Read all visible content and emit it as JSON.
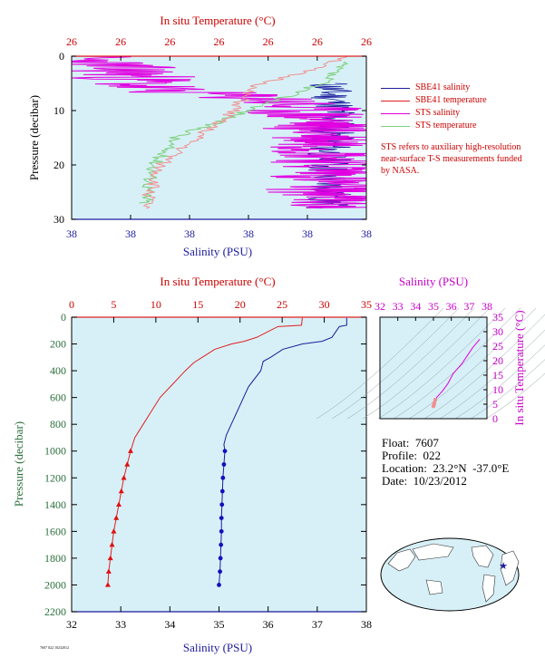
{
  "colors": {
    "plot_bg": "#d7f0f7",
    "salinity": "#1c1c9c",
    "temperature": "#e02020",
    "sts_salinity": "#e000e0",
    "sts_temperature": "#80d080",
    "sts_temperature_line": "#f09090"
  },
  "top_chart": {
    "top_axis_title": "In situ Temperature (°C)",
    "top_ticks": [
      "26",
      "26",
      "26",
      "26",
      "26",
      "26",
      "26"
    ],
    "bottom_axis_title": "Salinity (PSU)",
    "bottom_ticks": [
      "38",
      "38",
      "38",
      "38",
      "38",
      "38"
    ],
    "y_axis_title": "Pressure (decibar)",
    "y_ticks": [
      "0",
      "10",
      "20",
      "30"
    ],
    "legend": [
      {
        "label": "SBE41 salinity",
        "color": "#1c1c9c"
      },
      {
        "label": "SBE41 temperature",
        "color": "#e02020"
      },
      {
        "label": "STS salinity",
        "color": "#e000e0"
      },
      {
        "label": "STS temperature",
        "color": "#80d080"
      }
    ],
    "note": "STS refers to auxiliary high-resolution near-surface T-S measurements funded by NASA."
  },
  "main_chart": {
    "top_axis_title": "In situ Temperature (°C)",
    "top_ticks": [
      "0",
      "5",
      "10",
      "15",
      "20",
      "25",
      "30",
      "35"
    ],
    "bottom_axis_title": "Salinity (PSU)",
    "bottom_ticks": [
      "32",
      "33",
      "34",
      "35",
      "36",
      "37",
      "38"
    ],
    "y_axis_title": "Pressure (decibar)",
    "y_ticks": [
      "0",
      "200",
      "400",
      "600",
      "800",
      "1000",
      "1200",
      "1400",
      "1600",
      "1800",
      "2000",
      "2200"
    ]
  },
  "ts_chart": {
    "top_axis_title": "Salinity (PSU)",
    "top_ticks": [
      "32",
      "33",
      "34",
      "35",
      "36",
      "37",
      "38"
    ],
    "right_axis_title": "In situ Temperature (°C)",
    "right_ticks": [
      "0",
      "5",
      "10",
      "15",
      "20",
      "25",
      "30",
      "35"
    ]
  },
  "info": {
    "float": "Float:  7607",
    "profile": "Profile:  022",
    "location": "Location:  23.2°N  -37.0°E",
    "date": "Date:  10/23/2012"
  },
  "footer_code": "7607 022 10232012",
  "chart_data": [
    {
      "type": "line",
      "title": "",
      "xlabel": "Salinity (PSU)",
      "ylabel": "Pressure (decibar)",
      "x2label": "In situ Temperature (°C)",
      "xlim": [
        32,
        38
      ],
      "x2lim": [
        0,
        35
      ],
      "ylim": [
        2200,
        0
      ],
      "grid": false,
      "series": [
        {
          "name": "Salinity",
          "axis": "bottom",
          "points": [
            [
              37.6,
              5
            ],
            [
              37.6,
              60
            ],
            [
              37.45,
              70
            ],
            [
              37.3,
              150
            ],
            [
              37.1,
              180
            ],
            [
              36.7,
              200
            ],
            [
              36.3,
              240
            ],
            [
              36.05,
              300
            ],
            [
              35.9,
              330
            ],
            [
              35.85,
              400
            ],
            [
              35.6,
              520
            ],
            [
              35.45,
              640
            ],
            [
              35.35,
              720
            ],
            [
              35.25,
              800
            ],
            [
              35.15,
              880
            ],
            [
              35.1,
              950
            ],
            [
              35.12,
              1000
            ],
            [
              35.1,
              1100
            ],
            [
              35.08,
              1200
            ],
            [
              35.07,
              1300
            ],
            [
              35.06,
              1400
            ],
            [
              35.05,
              1500
            ],
            [
              35.05,
              1600
            ],
            [
              35.04,
              1700
            ],
            [
              35.03,
              1800
            ],
            [
              35.02,
              1900
            ],
            [
              35.0,
              2000
            ]
          ]
        },
        {
          "name": "Temperature",
          "axis": "top",
          "points": [
            [
              27.4,
              5
            ],
            [
              27.3,
              60
            ],
            [
              24.5,
              70
            ],
            [
              22.0,
              150
            ],
            [
              20.5,
              180
            ],
            [
              19.0,
              200
            ],
            [
              17.0,
              240
            ],
            [
              15.5,
              300
            ],
            [
              14.5,
              340
            ],
            [
              13.5,
              400
            ],
            [
              12.0,
              500
            ],
            [
              10.5,
              600
            ],
            [
              9.5,
              700
            ],
            [
              8.5,
              800
            ],
            [
              7.5,
              900
            ],
            [
              7.0,
              1000
            ],
            [
              6.6,
              1100
            ],
            [
              6.2,
              1200
            ],
            [
              5.9,
              1300
            ],
            [
              5.6,
              1400
            ],
            [
              5.3,
              1500
            ],
            [
              5.0,
              1600
            ],
            [
              4.8,
              1700
            ],
            [
              4.6,
              1800
            ],
            [
              4.4,
              1900
            ],
            [
              4.3,
              2000
            ]
          ]
        }
      ]
    },
    {
      "type": "line",
      "title": "",
      "xlabel": "Salinity (PSU)",
      "ylabel": "In situ Temperature (°C)",
      "xlim": [
        32,
        38
      ],
      "ylim": [
        0,
        35
      ],
      "series": [
        {
          "name": "T-S",
          "points": [
            [
              37.6,
              27.4
            ],
            [
              37.2,
              24.5
            ],
            [
              36.6,
              19.0
            ],
            [
              36.1,
              15.5
            ],
            [
              35.8,
              12.0
            ],
            [
              35.5,
              9.5
            ],
            [
              35.2,
              7.5
            ],
            [
              35.1,
              6.5
            ],
            [
              35.05,
              5.5
            ],
            [
              35.03,
              4.8
            ],
            [
              35.0,
              4.3
            ]
          ]
        }
      ]
    },
    {
      "type": "line",
      "title": "",
      "xlabel": "Salinity (PSU)",
      "ylabel": "Pressure (decibar)",
      "x2label": "In situ Temperature (°C)",
      "ylim": [
        30,
        0
      ],
      "series": [
        {
          "name": "SBE41 salinity",
          "points": [
            [
              0.87,
              5
            ],
            [
              0.9,
              10
            ],
            [
              0.88,
              15
            ],
            [
              0.87,
              20
            ],
            [
              0.88,
              25
            ],
            [
              0.87,
              28
            ]
          ]
        },
        {
          "name": "SBE41 temperature",
          "points": [
            [
              0.95,
              0
            ],
            [
              0.6,
              6
            ],
            [
              0.55,
              10
            ],
            [
              0.3,
              20
            ],
            [
              0.25,
              28
            ]
          ]
        },
        {
          "name": "STS salinity",
          "points": [
            [
              0.0,
              0
            ],
            [
              0.2,
              3
            ],
            [
              0.25,
              6
            ],
            [
              0.7,
              8
            ],
            [
              0.85,
              12
            ],
            [
              0.9,
              18
            ],
            [
              0.88,
              25
            ],
            [
              0.9,
              28
            ]
          ]
        },
        {
          "name": "STS temperature",
          "points": [
            [
              0.92,
              1
            ],
            [
              0.85,
              5
            ],
            [
              0.6,
              10
            ],
            [
              0.35,
              15
            ],
            [
              0.28,
              20
            ],
            [
              0.25,
              27
            ]
          ]
        }
      ]
    }
  ]
}
